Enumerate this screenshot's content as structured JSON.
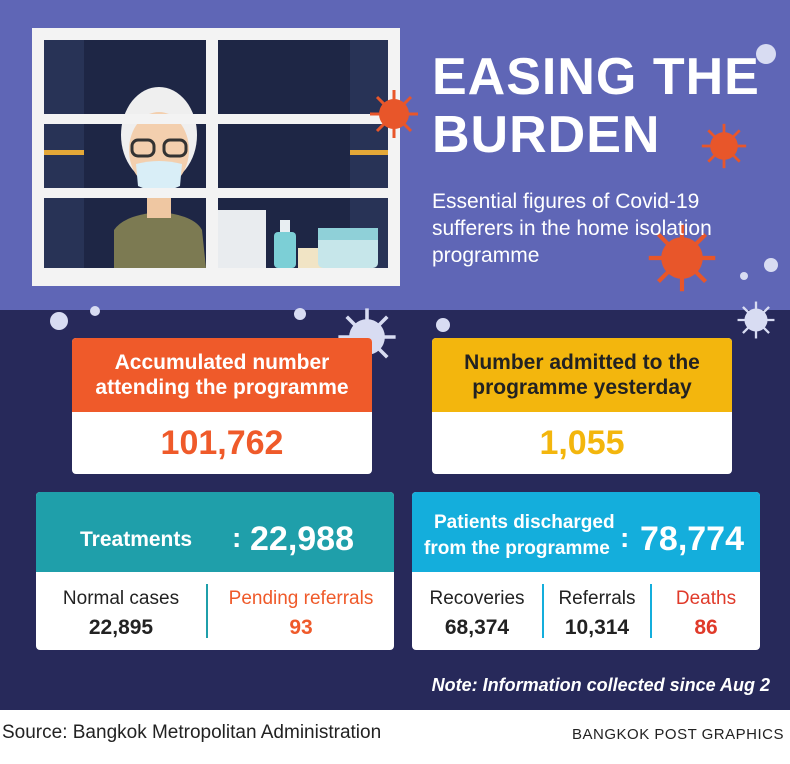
{
  "header": {
    "title_line1": "EASING THE",
    "title_line2": "BURDEN",
    "subtitle": "Essential figures of Covid-19 sufferers in the home isolation programme"
  },
  "cards": {
    "accumulated": {
      "label": "Accumulated number attending the programme",
      "value": "101,762"
    },
    "admitted": {
      "label": "Number admitted to the programme yesterday",
      "value": "1,055"
    },
    "treatments": {
      "label": "Treatments",
      "separator": ":",
      "value": "22,988",
      "normal_label": "Normal cases",
      "normal_value": "22,895",
      "pending_label": "Pending referrals",
      "pending_value": "93"
    },
    "discharged": {
      "label_line1": "Patients discharged",
      "label_line2": "from the programme",
      "separator": ":",
      "value": "78,774",
      "recoveries_label": "Recoveries",
      "recoveries_value": "68,374",
      "referrals_label": "Referrals",
      "referrals_value": "10,314",
      "deaths_label": "Deaths",
      "deaths_value": "86"
    }
  },
  "note": "Note: Information collected since Aug 2",
  "footer": {
    "source": "Source: Bangkok Metropolitan Administration",
    "credit": "BANGKOK POST GRAPHICS"
  },
  "colors": {
    "top_bg": "#5f66b6",
    "bottom_bg": "#27295a",
    "orange": "#ef5a2a",
    "yellow": "#f3b60d",
    "teal": "#1f9faa",
    "sky": "#14aedc",
    "death_red": "#e03a2a"
  }
}
